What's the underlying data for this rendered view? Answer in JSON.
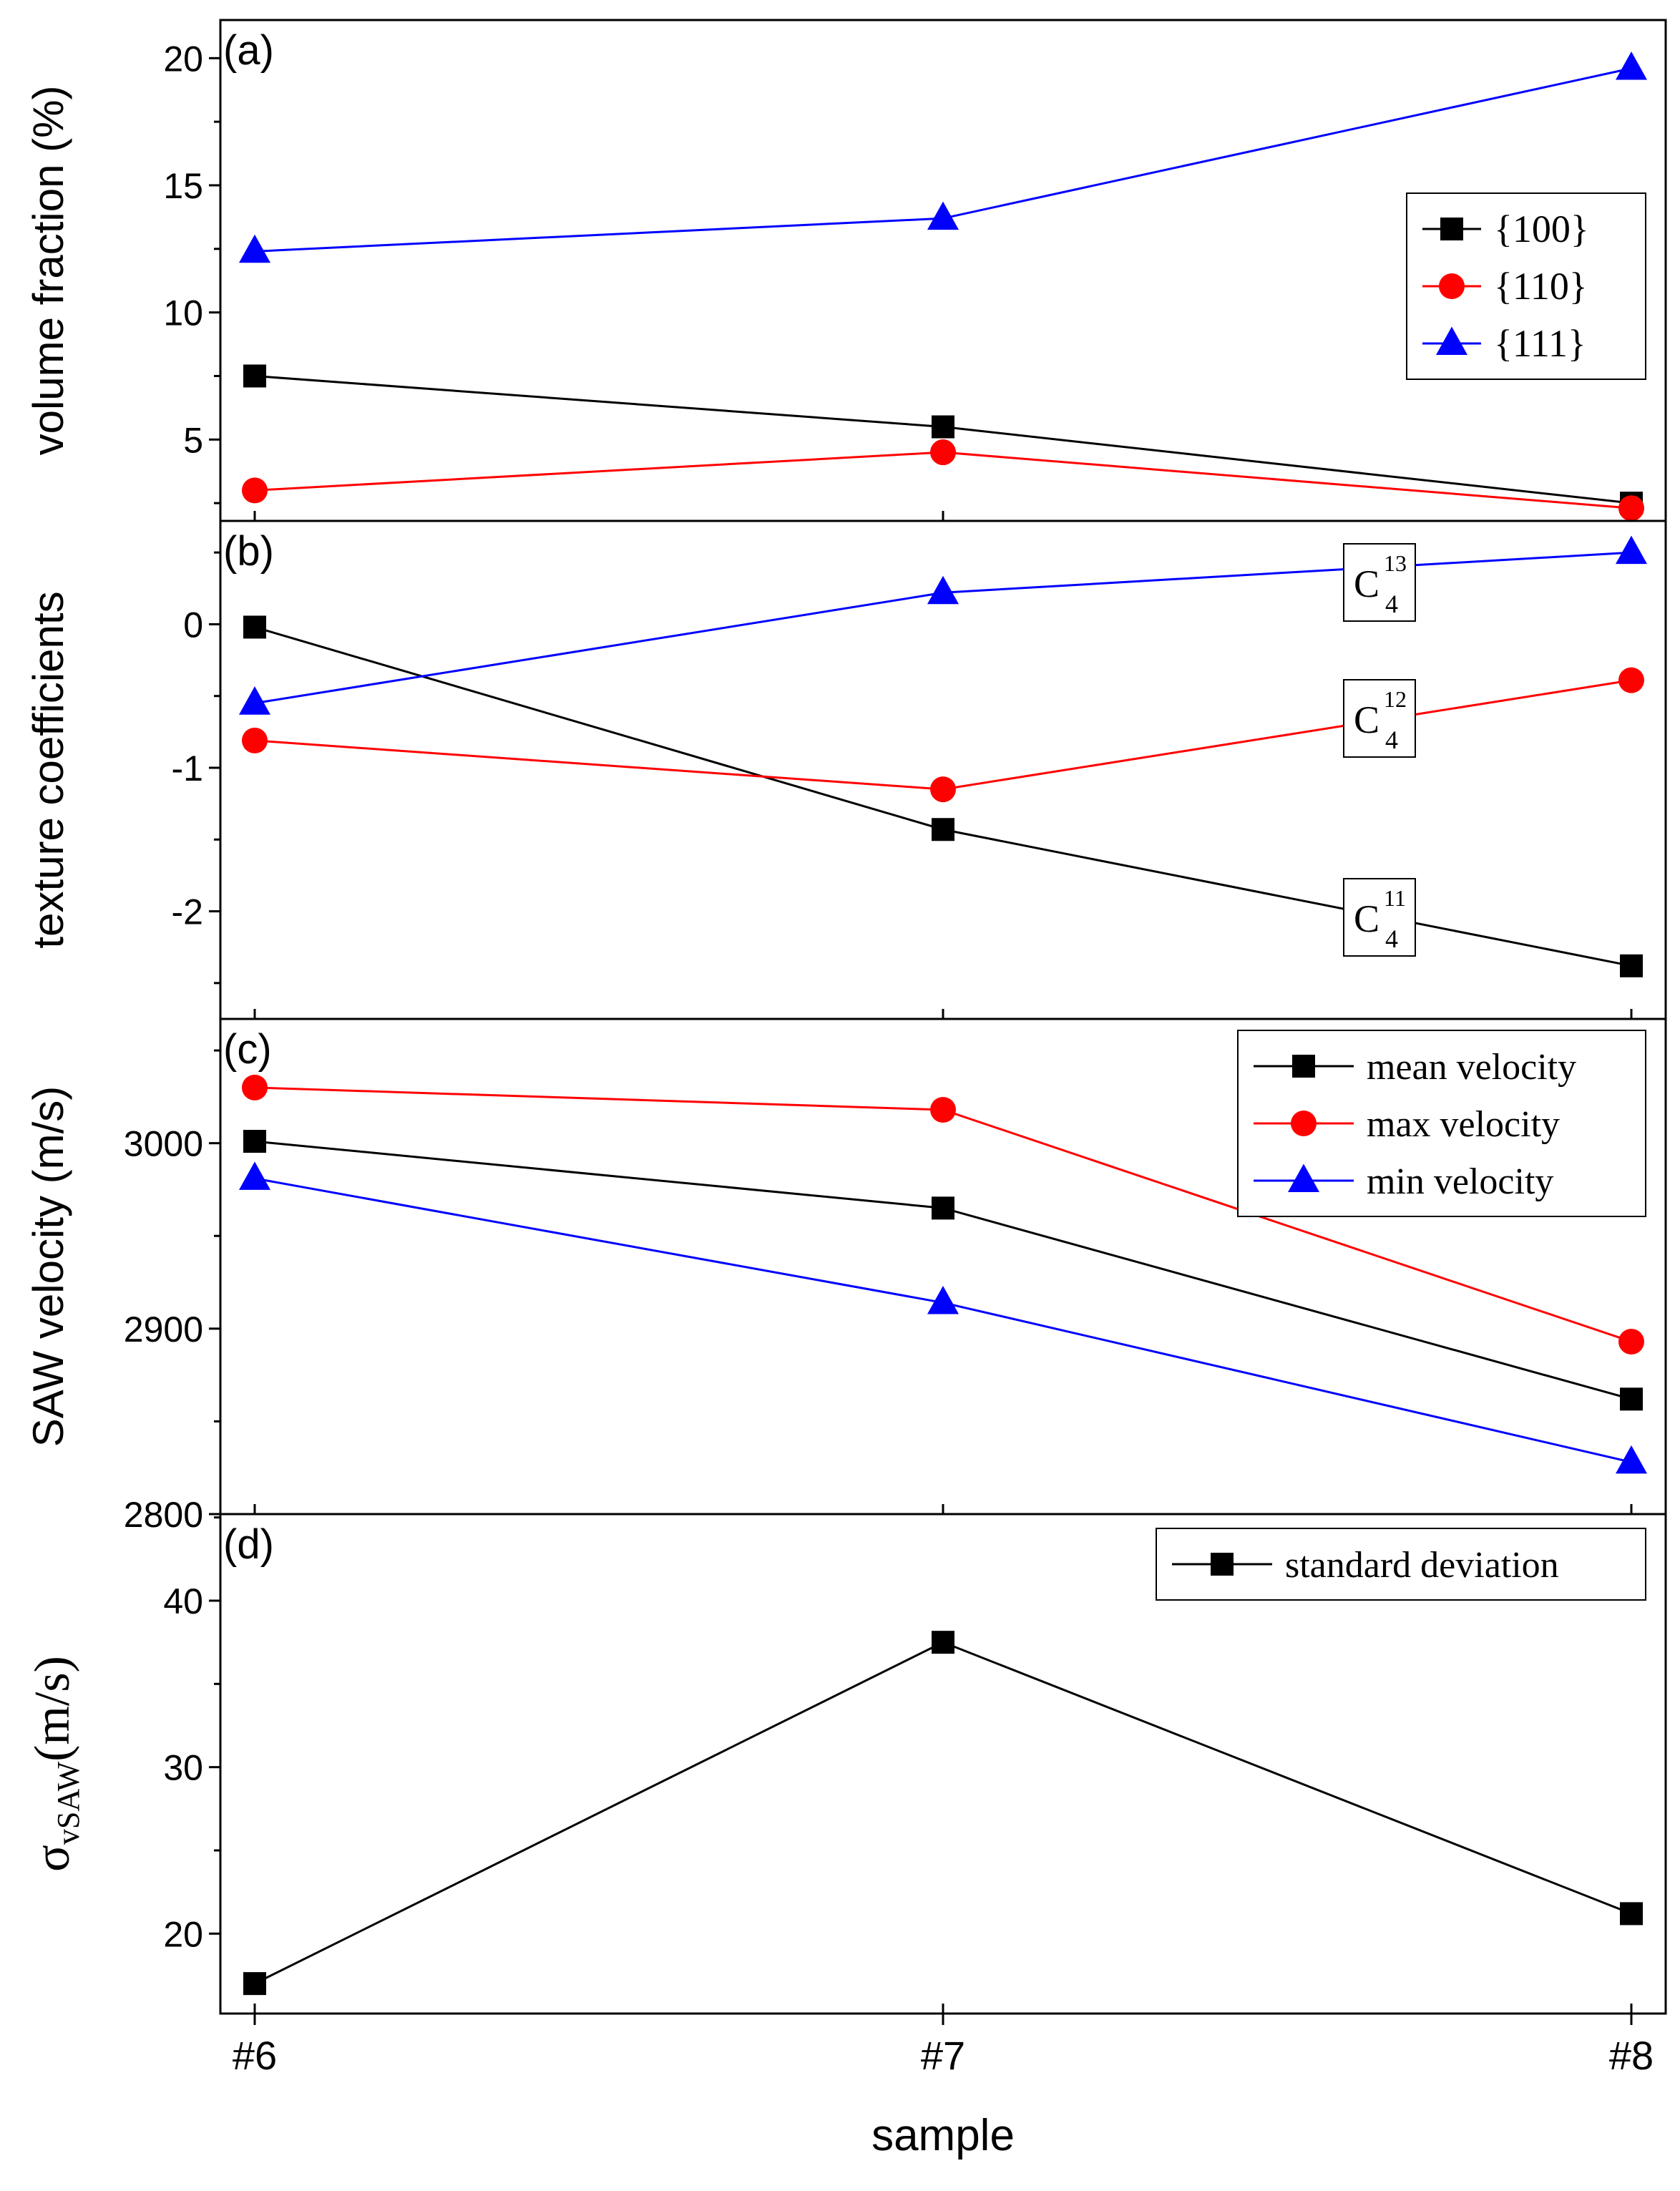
{
  "x_categories": [
    "#6",
    "#7",
    "#8"
  ],
  "x_label": "sample",
  "chart_data": [
    {
      "type": "line",
      "panel_label": "(a)",
      "ylabel": "volume fraction (%)",
      "ylim": [
        1.8,
        21.5
      ],
      "yticks": [
        5,
        10,
        15,
        20
      ],
      "ytick_labels": [
        "5",
        "10",
        "15",
        "20"
      ],
      "categories": [
        "#6",
        "#7",
        "#8"
      ],
      "legend": "right",
      "series": [
        {
          "name": "{100}",
          "color": "#000000",
          "marker": "square",
          "values": [
            7.5,
            5.5,
            2.5
          ]
        },
        {
          "name": "{110}",
          "color": "#ff0000",
          "marker": "circle",
          "values": [
            3.0,
            4.5,
            2.3
          ]
        },
        {
          "name": "{111}",
          "color": "#0000ff",
          "marker": "triangle",
          "values": [
            12.4,
            13.7,
            19.6
          ]
        }
      ]
    },
    {
      "type": "line",
      "panel_label": "(b)",
      "ylabel": "texture coefficients",
      "ylim": [
        -2.75,
        0.72
      ],
      "yticks": [
        -2,
        -1,
        0
      ],
      "ytick_labels": [
        "-2",
        "-1",
        "0"
      ],
      "categories": [
        "#6",
        "#7",
        "#8"
      ],
      "series": [
        {
          "name": "C4_11",
          "color": "#000000",
          "marker": "square",
          "values": [
            -0.02,
            -1.43,
            -2.38
          ]
        },
        {
          "name": "C4_12",
          "color": "#ff0000",
          "marker": "circle",
          "values": [
            -0.81,
            -1.15,
            -0.39
          ]
        },
        {
          "name": "C4_13",
          "color": "#0000ff",
          "marker": "triangle",
          "values": [
            -0.55,
            0.22,
            0.5
          ]
        }
      ],
      "annotations": [
        {
          "base": "C",
          "sub": "4",
          "sup": "13"
        },
        {
          "base": "C",
          "sub": "4",
          "sup": "12"
        },
        {
          "base": "C",
          "sub": "4",
          "sup": "11"
        }
      ]
    },
    {
      "type": "line",
      "panel_label": "(c)",
      "ylabel": "SAW velocity (m/s)",
      "ylim": [
        2800,
        3067
      ],
      "yticks": [
        2800,
        2900,
        3000
      ],
      "ytick_labels": [
        "2800",
        "2900",
        "3000"
      ],
      "categories": [
        "#6",
        "#7",
        "#8"
      ],
      "legend": "top-right",
      "series": [
        {
          "name": "mean velocity",
          "color": "#000000",
          "marker": "square",
          "values": [
            3001,
            2965,
            2862
          ]
        },
        {
          "name": "max velocity",
          "color": "#ff0000",
          "marker": "circle",
          "values": [
            3030,
            3018,
            2893
          ]
        },
        {
          "name": "min velocity",
          "color": "#0000ff",
          "marker": "triangle",
          "values": [
            2981,
            2914,
            2828
          ]
        }
      ]
    },
    {
      "type": "line",
      "panel_label": "(d)",
      "ylabel_base": "σ",
      "ylabel_sub": "vSAW",
      "ylabel_unit": "(m/s)",
      "ylim": [
        15.2,
        45.2
      ],
      "yticks": [
        20,
        30,
        40
      ],
      "ytick_labels": [
        "20",
        "30",
        "40"
      ],
      "categories": [
        "#6",
        "#7",
        "#8"
      ],
      "legend": "top-right",
      "series": [
        {
          "name": "standard deviation",
          "color": "#000000",
          "marker": "square",
          "values": [
            17.0,
            37.5,
            21.2
          ]
        }
      ]
    }
  ]
}
